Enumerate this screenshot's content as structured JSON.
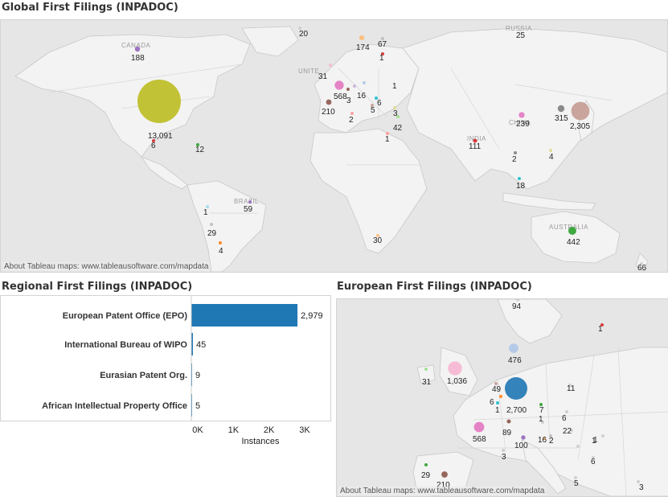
{
  "global_title": "Global First Filings (INPADOC)",
  "regional_title": "Regional First Filings (INPADOC)",
  "european_title": "European First Filings (INPADOC)",
  "map_credit": "About Tableau maps: www.tableausoftware.com/mapdata",
  "country_names": {
    "canada": "CANADA",
    "russia": "RUSSIA",
    "brazil": "BRAZIL",
    "australia": "AUSTRALIA",
    "china": "CHINA",
    "india": "INDIA",
    "united": "UNITE"
  },
  "chart_data": [
    {
      "type": "scatter",
      "name": "global-map",
      "points": [
        {
          "label": "13,091",
          "value": 13091,
          "color": "#bcbd22"
        },
        {
          "label": "188",
          "value": 188,
          "color": "#9467bd"
        },
        {
          "label": "20",
          "value": 20,
          "color": "#cccccc"
        },
        {
          "label": "174",
          "value": 174,
          "color": "#ffbb78"
        },
        {
          "label": "67",
          "value": 67,
          "color": "#bbbbbb"
        },
        {
          "label": "1",
          "value": 1,
          "color": "#d62728"
        },
        {
          "label": "25",
          "value": 25,
          "color": "#cccccc"
        },
        {
          "label": "31",
          "value": 31,
          "color": "#f7b6d2"
        },
        {
          "label": "568",
          "value": 568,
          "color": "#e377c2"
        },
        {
          "label": "3",
          "value": 3,
          "color": "#8c564b"
        },
        {
          "label": "16",
          "value": 16,
          "color": "#c5b0d5"
        },
        {
          "label": "1",
          "value": 1,
          "color": "#aec7e8"
        },
        {
          "label": "6",
          "value": 6,
          "color": "#17becf"
        },
        {
          "label": "5",
          "value": 5,
          "color": "#c49c94"
        },
        {
          "label": "210",
          "value": 210,
          "color": "#8c564b"
        },
        {
          "label": "2",
          "value": 2,
          "color": "#ff9896"
        },
        {
          "label": "3",
          "value": 3,
          "color": "#dbdb8d"
        },
        {
          "label": "42",
          "value": 42,
          "color": "#98df8a"
        },
        {
          "label": "1",
          "value": 1,
          "color": "#ff9896"
        },
        {
          "label": "6",
          "value": 6,
          "color": "#d62728"
        },
        {
          "label": "12",
          "value": 12,
          "color": "#2ca02c"
        },
        {
          "label": "239",
          "value": 239,
          "color": "#e377c2"
        },
        {
          "label": "315",
          "value": 315,
          "color": "#7f7f7f"
        },
        {
          "label": "2,305",
          "value": 2305,
          "color": "#c49c94"
        },
        {
          "label": "111",
          "value": 111,
          "color": "#d62728"
        },
        {
          "label": "2",
          "value": 2,
          "color": "#7f7f7f"
        },
        {
          "label": "4",
          "value": 4,
          "color": "#dbdb8d"
        },
        {
          "label": "18",
          "value": 18,
          "color": "#17becf"
        },
        {
          "label": "1",
          "value": 1,
          "color": "#9edae5"
        },
        {
          "label": "59",
          "value": 59,
          "color": "#9467bd"
        },
        {
          "label": "29",
          "value": 29,
          "color": "#bbbbbb"
        },
        {
          "label": "4",
          "value": 4,
          "color": "#ff7f0e"
        },
        {
          "label": "30",
          "value": 30,
          "color": "#ffbb78"
        },
        {
          "label": "442",
          "value": 442,
          "color": "#2ca02c"
        },
        {
          "label": "66",
          "value": 66,
          "color": "#cccccc"
        }
      ]
    },
    {
      "type": "bar",
      "name": "regional-bars",
      "orientation": "horizontal",
      "categories": [
        "European Patent Office (EPO)",
        "International Bureau of WIPO",
        "Eurasian Patent Org.",
        "African Intellectual Property Office"
      ],
      "values": [
        2979,
        45,
        9,
        5
      ],
      "value_labels": [
        "2,979",
        "45",
        "9",
        "5"
      ],
      "xlabel": "Instances",
      "xticks": [
        "0K",
        "1K",
        "2K",
        "3K"
      ],
      "xlim": [
        0,
        3000
      ],
      "color": "#1f77b4"
    },
    {
      "type": "scatter",
      "name": "european-map",
      "points": [
        {
          "label": "94",
          "value": 94,
          "color": "#cccccc"
        },
        {
          "label": "1",
          "value": 1,
          "color": "#d62728"
        },
        {
          "label": "476",
          "value": 476,
          "color": "#aec7e8"
        },
        {
          "label": "31",
          "value": 31,
          "color": "#98df8a"
        },
        {
          "label": "1,036",
          "value": 1036,
          "color": "#f7b6d2"
        },
        {
          "label": "49",
          "value": 49,
          "color": "#c49c94"
        },
        {
          "label": "2,700",
          "value": 2700,
          "color": "#1f77b4"
        },
        {
          "label": "6",
          "value": 6,
          "color": "#ff7f0e"
        },
        {
          "label": "1",
          "value": 1,
          "color": "#17becf"
        },
        {
          "label": "11",
          "value": 11,
          "color": "#cccccc"
        },
        {
          "label": "7",
          "value": 7,
          "color": "#2ca02c"
        },
        {
          "label": "1",
          "value": 1,
          "color": "#cccccc"
        },
        {
          "label": "568",
          "value": 568,
          "color": "#e377c2"
        },
        {
          "label": "89",
          "value": 89,
          "color": "#8c564b"
        },
        {
          "label": "6",
          "value": 6,
          "color": "#cccccc"
        },
        {
          "label": "22",
          "value": 22,
          "color": "#cccccc"
        },
        {
          "label": "100",
          "value": 100,
          "color": "#9467bd"
        },
        {
          "label": "16",
          "value": 16,
          "color": "#ffbb78"
        },
        {
          "label": "2",
          "value": 2,
          "color": "#bbbbbb"
        },
        {
          "label": "1",
          "value": 1,
          "color": "#cccccc"
        },
        {
          "label": "3",
          "value": 3,
          "color": "#cccccc"
        },
        {
          "label": "1",
          "value": 1,
          "color": "#cccccc"
        },
        {
          "label": "6",
          "value": 6,
          "color": "#cccccc"
        },
        {
          "label": "29",
          "value": 29,
          "color": "#2ca02c"
        },
        {
          "label": "210",
          "value": 210,
          "color": "#8c564b"
        },
        {
          "label": "5",
          "value": 5,
          "color": "#cccccc"
        },
        {
          "label": "3",
          "value": 3,
          "color": "#cccccc"
        }
      ]
    }
  ]
}
